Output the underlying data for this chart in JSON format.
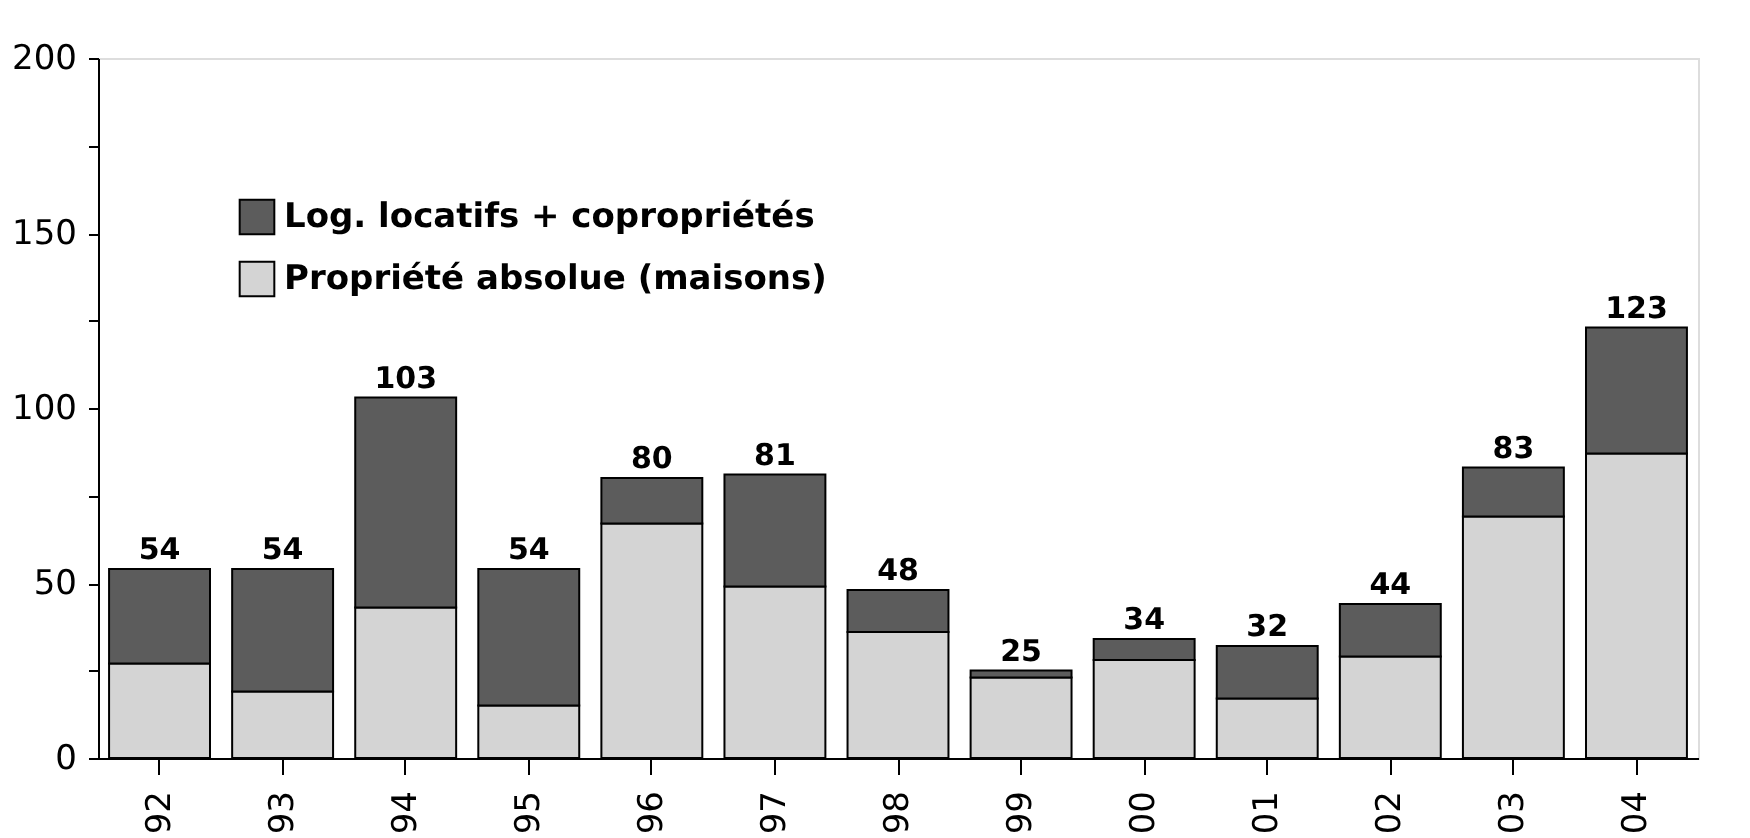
{
  "chart_data": {
    "type": "bar",
    "stacked": true,
    "categories": [
      "92",
      "93",
      "94",
      "95",
      "96",
      "97",
      "98",
      "99",
      "00",
      "01",
      "02",
      "03",
      "04"
    ],
    "series": [
      {
        "name": "Propriété absolue (maisons)",
        "color": "#d4d4d4",
        "values": [
          27,
          19,
          43,
          15,
          67,
          49,
          36,
          23,
          28,
          17,
          29,
          69,
          87
        ]
      },
      {
        "name": "Log. locatifs + copropriétés",
        "color": "#5c5c5c",
        "values": [
          27,
          35,
          60,
          39,
          13,
          32,
          12,
          2,
          6,
          15,
          15,
          14,
          36
        ]
      }
    ],
    "totals": [
      "54",
      "54",
      "103",
      "54",
      "80",
      "81",
      "48",
      "25",
      "34",
      "32",
      "44",
      "83",
      "123"
    ],
    "ylim": [
      0,
      200
    ],
    "yticks": [
      0,
      {
        "value": 25,
        "label": null
      },
      50,
      {
        "value": 75,
        "label": null
      },
      100,
      {
        "value": 125,
        "label": null
      },
      150,
      {
        "value": 175,
        "label": null
      },
      200
    ],
    "grid": false,
    "legend": "top left"
  }
}
